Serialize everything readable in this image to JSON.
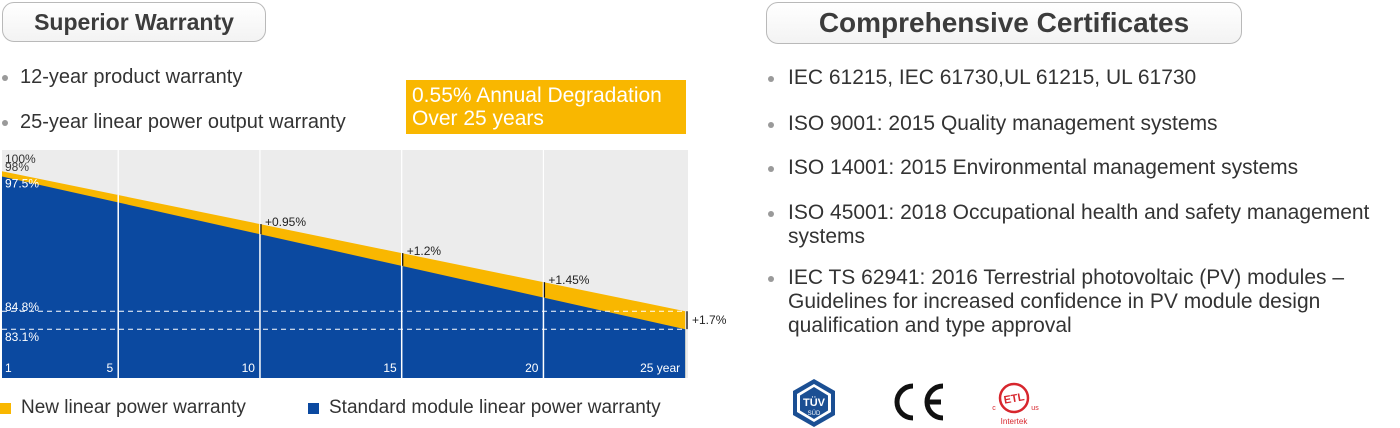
{
  "left": {
    "title": "Superior Warranty",
    "bullets": [
      "12-year product warranty",
      "25-year linear power output warranty"
    ],
    "degradation_box": {
      "line1": "0.55% Annual Degradation",
      "line2": "Over 25 years"
    },
    "legend": [
      {
        "label": "New linear power warranty",
        "color": "#f9b700"
      },
      {
        "label": "Standard module linear power warranty",
        "color": "#0b49a0"
      }
    ]
  },
  "right": {
    "title": "Comprehensive Certificates",
    "certificates": [
      "IEC 61215, IEC 61730,UL 61215, UL 61730",
      "ISO 9001: 2015 Quality management systems",
      "ISO 14001: 2015 Environmental management systems",
      "ISO 45001: 2018 Occupational health and safety management systems",
      "IEC TS 62941: 2016 Terrestrial photovoltaic (PV) modules – Guidelines for increased confidence in PV module design qualification and type approval"
    ],
    "certificates_lines": [
      [
        "IEC 61215, IEC 61730,UL 61215, UL 61730"
      ],
      [
        "ISO 9001: 2015 Quality management systems"
      ],
      [
        "ISO 14001: 2015 Environmental management systems"
      ],
      [
        "ISO 45001: 2018 Occupational health and safety management",
        "systems"
      ],
      [
        "IEC TS 62941: 2016 Terrestrial photovoltaic (PV) modules –",
        "Guidelines for increased confidence in PV module design",
        "qualification and type approval"
      ]
    ],
    "logos": [
      {
        "name": "tuv-sud-logo",
        "text": "TÜV",
        "subtext": "SÜD"
      },
      {
        "name": "ce-mark",
        "text": "CE"
      },
      {
        "name": "etl-intertek-logo",
        "text": "ETL",
        "small_left": "c",
        "small_right": "us",
        "subtext": "Intertek"
      }
    ]
  },
  "chart_data": {
    "type": "area",
    "x_ticks": [
      {
        "x": 1,
        "label": "1"
      },
      {
        "x": 5,
        "label": "5"
      },
      {
        "x": 10,
        "label": "10"
      },
      {
        "x": 15,
        "label": "15"
      },
      {
        "x": 20,
        "label": "20"
      },
      {
        "x": 25,
        "label": "25 year"
      }
    ],
    "xlim": [
      0.9,
      25.1
    ],
    "ylim": [
      78.5,
      100
    ],
    "top_label": "100%",
    "gridlines_x": [
      5,
      10,
      15,
      20
    ],
    "series": [
      {
        "name": "New linear power warranty",
        "color": "#f9b700",
        "points": [
          [
            0.9,
            98
          ],
          [
            25,
            84.8
          ]
        ]
      },
      {
        "name": "Standard module linear power warranty",
        "color": "#0b49a0",
        "points": [
          [
            0.9,
            97.5
          ],
          [
            25,
            83.1
          ]
        ]
      }
    ],
    "value_labels": [
      {
        "x": 0.9,
        "y": 98,
        "text": "98%"
      },
      {
        "x": 0.9,
        "y": 97.5,
        "text": "97.5%"
      },
      {
        "x": 0.9,
        "y": 84.8,
        "text": "84.8%"
      },
      {
        "x": 0.9,
        "y": 83.1,
        "text": "83.1%"
      }
    ],
    "reference_lines": [
      84.8,
      83.1
    ],
    "gap_annotations": [
      {
        "x": 10,
        "text": "+0.95%"
      },
      {
        "x": 15,
        "text": "+1.2%"
      },
      {
        "x": 20,
        "text": "+1.45%"
      },
      {
        "x": 25,
        "text": "+1.7%"
      }
    ]
  }
}
